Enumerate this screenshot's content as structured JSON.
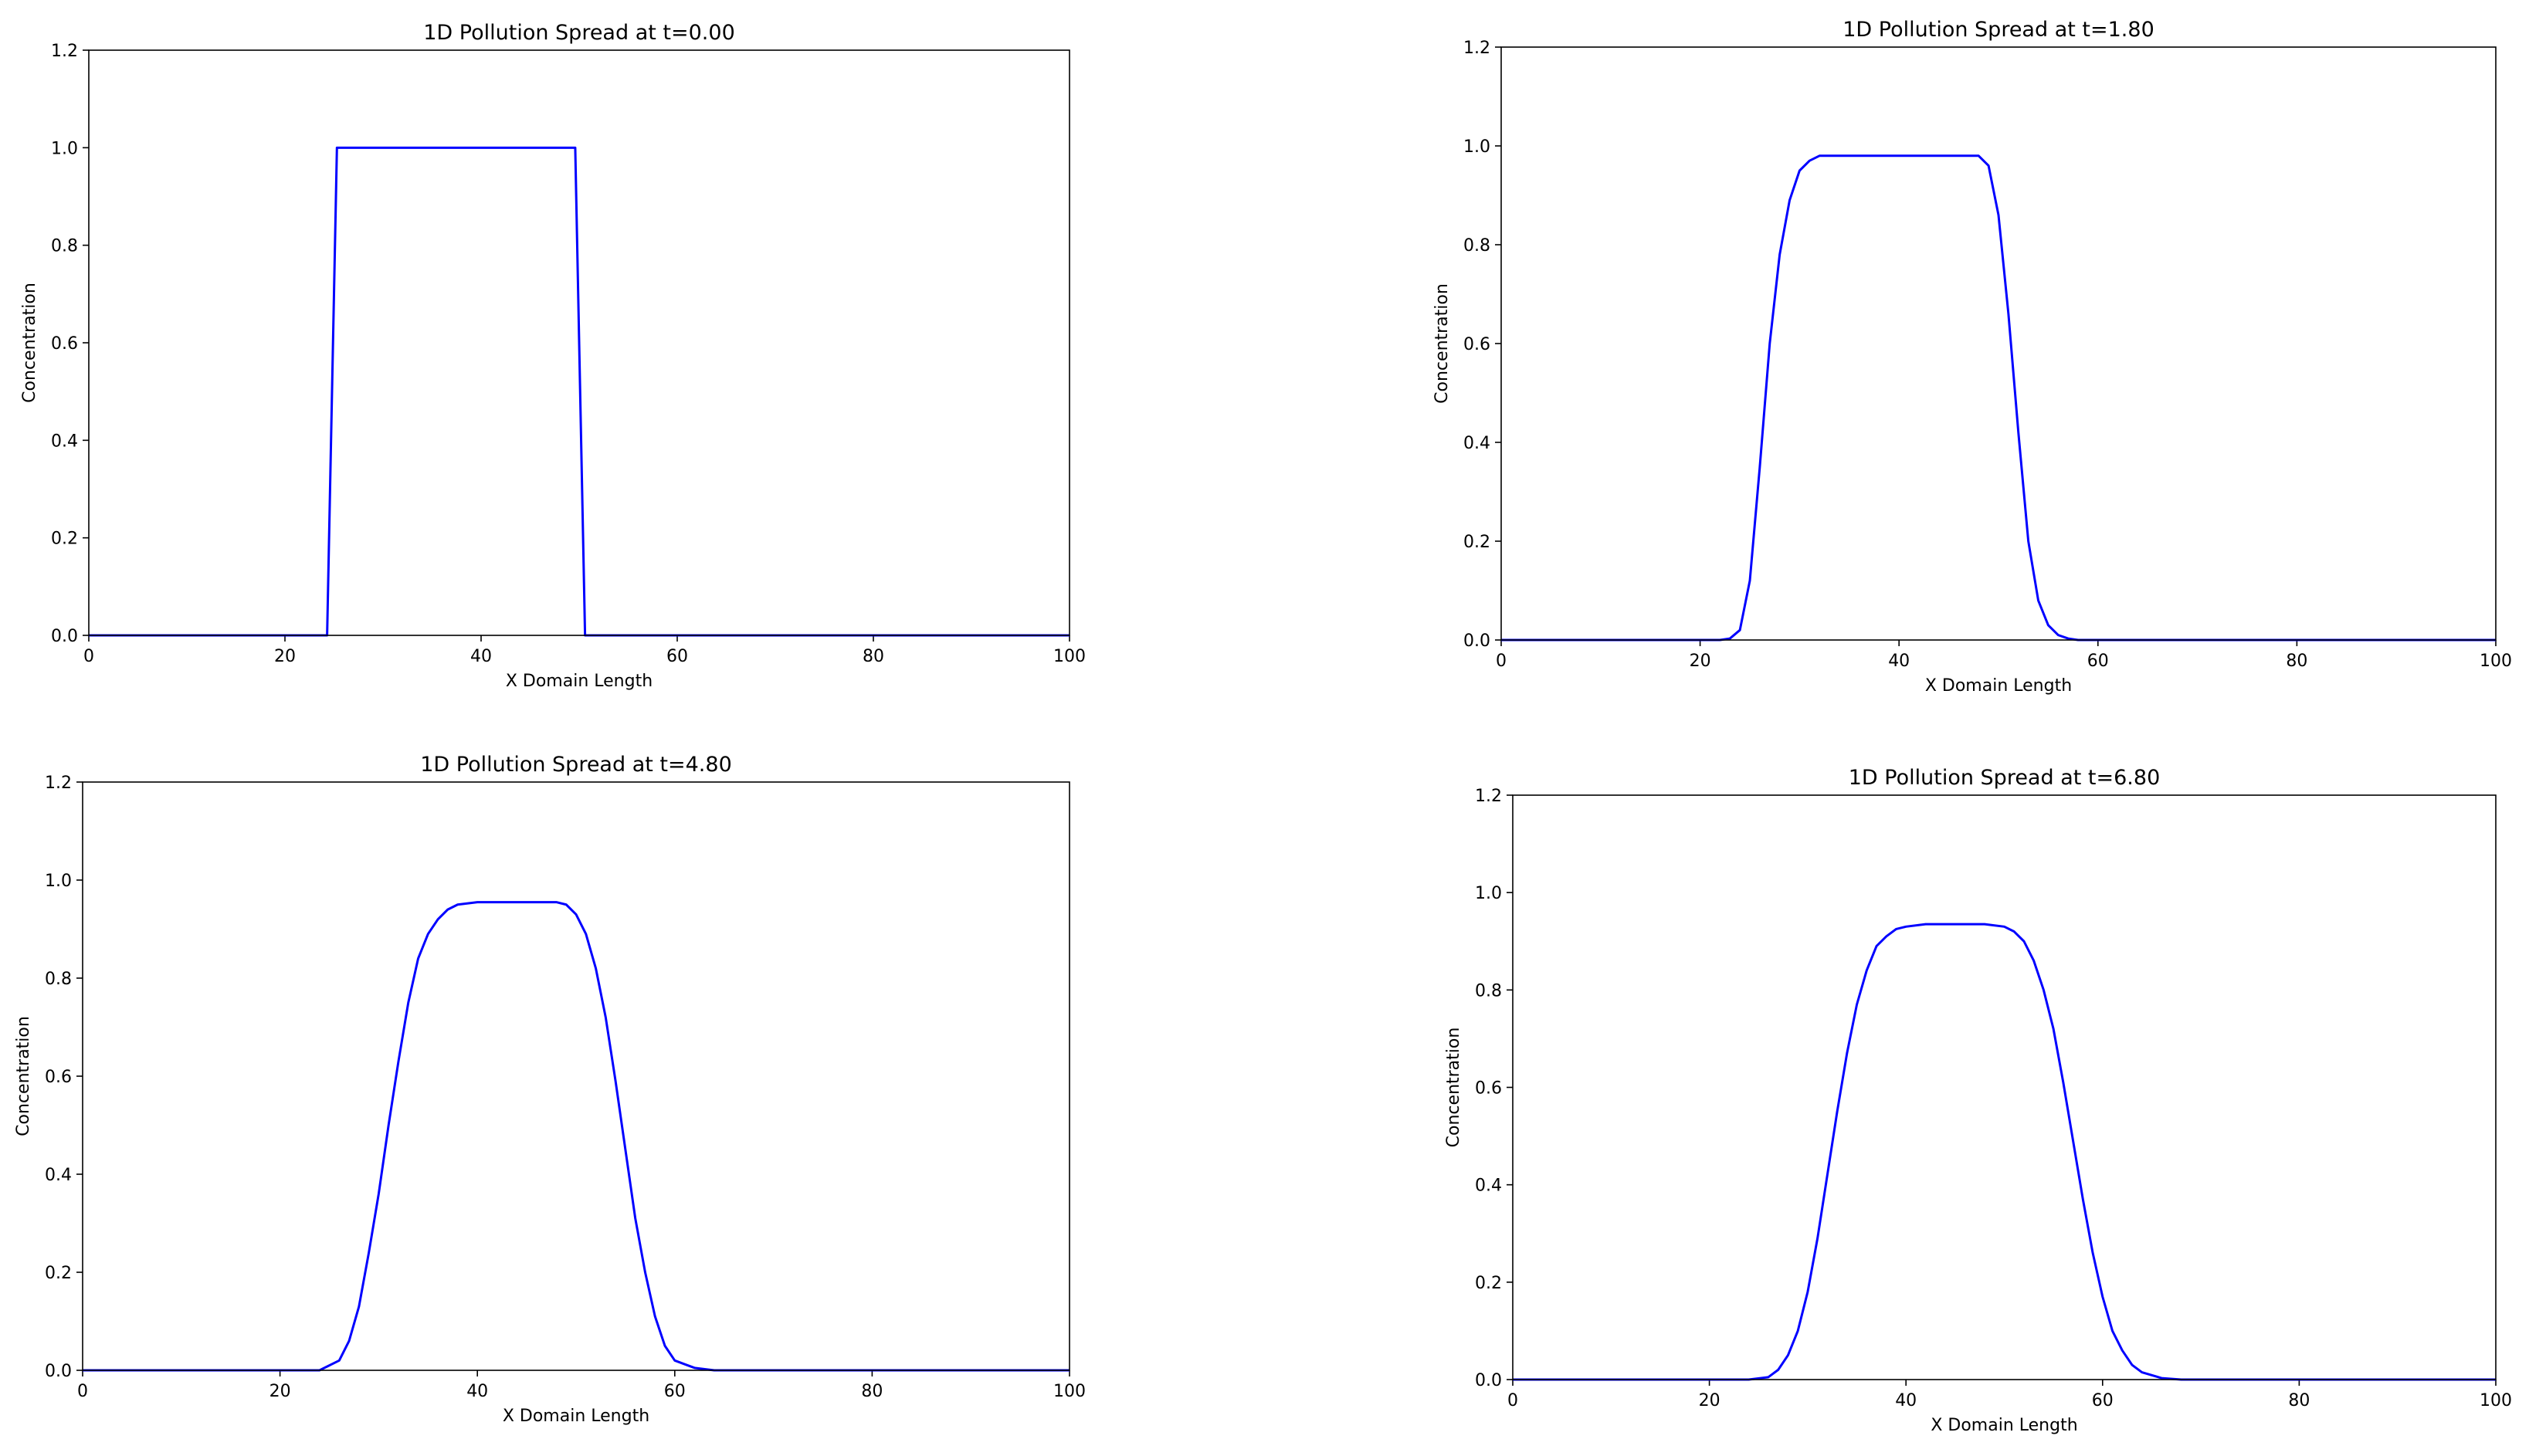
{
  "chart_data": [
    {
      "type": "line",
      "title": "1D Pollution Spread at t=0.00",
      "xlabel": "X Domain Length",
      "ylabel": "Concentration",
      "color": "#0000ff",
      "x": [
        0,
        24.3,
        25.3,
        49.6,
        50.6,
        100
      ],
      "values": [
        0,
        0,
        1,
        1,
        0,
        0
      ],
      "xlim": [
        0,
        100
      ],
      "ylim": [
        0,
        1.2
      ],
      "xticks": [
        0,
        20,
        40,
        60,
        80,
        100
      ],
      "yticks": [
        {
          "value": 0,
          "label": "0.0"
        },
        {
          "value": 0.2,
          "label": "0.2"
        },
        {
          "value": 0.4,
          "label": "0.4"
        },
        {
          "value": 0.6,
          "label": "0.6"
        },
        {
          "value": 0.8,
          "label": "0.8"
        },
        {
          "value": 1,
          "label": "1.0"
        },
        {
          "value": 1.2,
          "label": "1.2"
        }
      ]
    },
    {
      "type": "line",
      "title": "1D Pollution Spread at t=1.80",
      "xlabel": "X Domain Length",
      "ylabel": "Concentration",
      "color": "#0000ff",
      "x": [
        0,
        22,
        23,
        24,
        25,
        26,
        27,
        28,
        29,
        30,
        31,
        32,
        36,
        40,
        44,
        48,
        49,
        50,
        51,
        52,
        53,
        54,
        55,
        56,
        57,
        58,
        100
      ],
      "values": [
        0,
        0,
        0.003,
        0.02,
        0.12,
        0.35,
        0.6,
        0.78,
        0.89,
        0.95,
        0.97,
        0.98,
        0.98,
        0.98,
        0.98,
        0.98,
        0.96,
        0.86,
        0.66,
        0.42,
        0.2,
        0.08,
        0.03,
        0.01,
        0.003,
        0,
        0
      ],
      "xlim": [
        0,
        100
      ],
      "ylim": [
        0,
        1.2
      ],
      "xticks": [
        0,
        20,
        40,
        60,
        80,
        100
      ],
      "yticks": [
        {
          "value": 0,
          "label": "0.0"
        },
        {
          "value": 0.2,
          "label": "0.2"
        },
        {
          "value": 0.4,
          "label": "0.4"
        },
        {
          "value": 0.6,
          "label": "0.6"
        },
        {
          "value": 0.8,
          "label": "0.8"
        },
        {
          "value": 1,
          "label": "1.0"
        },
        {
          "value": 1.2,
          "label": "1.2"
        }
      ]
    },
    {
      "type": "line",
      "title": "1D Pollution Spread at t=4.80",
      "xlabel": "X Domain Length",
      "ylabel": "Concentration",
      "color": "#0000ff",
      "x": [
        0,
        24,
        26,
        27,
        28,
        29,
        30,
        31,
        32,
        33,
        34,
        35,
        36,
        37,
        38,
        40,
        44,
        48,
        49,
        50,
        51,
        52,
        53,
        54,
        55,
        56,
        57,
        58,
        59,
        60,
        62,
        64,
        100
      ],
      "values": [
        0,
        0,
        0.02,
        0.06,
        0.13,
        0.24,
        0.36,
        0.5,
        0.63,
        0.75,
        0.84,
        0.89,
        0.92,
        0.94,
        0.95,
        0.955,
        0.955,
        0.955,
        0.95,
        0.93,
        0.89,
        0.82,
        0.72,
        0.59,
        0.45,
        0.31,
        0.2,
        0.11,
        0.05,
        0.02,
        0.005,
        0,
        0
      ],
      "xlim": [
        0,
        100
      ],
      "ylim": [
        0,
        1.2
      ],
      "xticks": [
        0,
        20,
        40,
        60,
        80,
        100
      ],
      "yticks": [
        {
          "value": 0,
          "label": "0.0"
        },
        {
          "value": 0.2,
          "label": "0.2"
        },
        {
          "value": 0.4,
          "label": "0.4"
        },
        {
          "value": 0.6,
          "label": "0.6"
        },
        {
          "value": 0.8,
          "label": "0.8"
        },
        {
          "value": 1,
          "label": "1.0"
        },
        {
          "value": 1.2,
          "label": "1.2"
        }
      ]
    },
    {
      "type": "line",
      "title": "1D Pollution Spread at t=6.80",
      "xlabel": "X Domain Length",
      "ylabel": "Concentration",
      "color": "#0000ff",
      "x": [
        0,
        24,
        26,
        27,
        28,
        29,
        30,
        31,
        32,
        33,
        34,
        35,
        36,
        37,
        38,
        39,
        40,
        42,
        48,
        50,
        51,
        52,
        53,
        54,
        55,
        56,
        57,
        58,
        59,
        60,
        61,
        62,
        63,
        64,
        66,
        68,
        100
      ],
      "values": [
        0,
        0,
        0.005,
        0.02,
        0.05,
        0.1,
        0.18,
        0.29,
        0.42,
        0.55,
        0.67,
        0.77,
        0.84,
        0.89,
        0.91,
        0.925,
        0.93,
        0.935,
        0.935,
        0.93,
        0.92,
        0.9,
        0.86,
        0.8,
        0.72,
        0.61,
        0.49,
        0.37,
        0.26,
        0.17,
        0.1,
        0.06,
        0.03,
        0.015,
        0.003,
        0,
        0
      ],
      "xlim": [
        0,
        100
      ],
      "ylim": [
        0,
        1.2
      ],
      "xticks": [
        0,
        20,
        40,
        60,
        80,
        100
      ],
      "yticks": [
        {
          "value": 0,
          "label": "0.0"
        },
        {
          "value": 0.2,
          "label": "0.2"
        },
        {
          "value": 0.4,
          "label": "0.4"
        },
        {
          "value": 0.6,
          "label": "0.6"
        },
        {
          "value": 0.8,
          "label": "0.8"
        },
        {
          "value": 1,
          "label": "1.0"
        },
        {
          "value": 1.2,
          "label": "1.2"
        }
      ]
    }
  ]
}
